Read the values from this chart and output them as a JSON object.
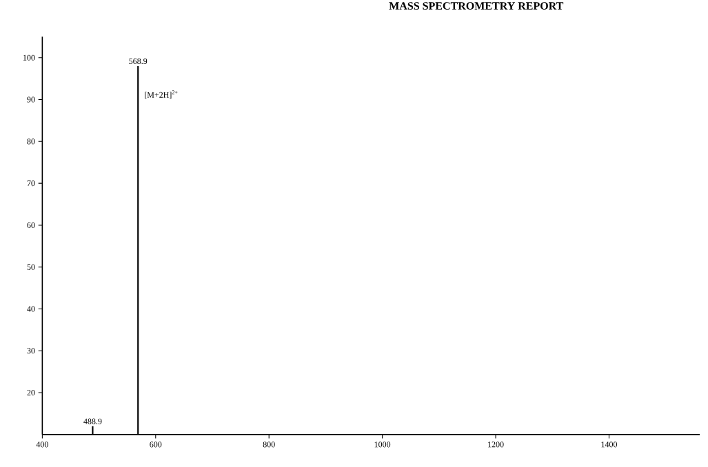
{
  "chart_data": {
    "type": "bar",
    "title": "MASS SPECTROMETRY REPORT",
    "x": [
      488.9,
      568.9
    ],
    "series": [
      {
        "color": "#000000",
        "values": [
          12,
          98
        ]
      }
    ],
    "xlim": [
      400,
      1560
    ],
    "ylim": [
      10,
      105
    ],
    "xticks": [
      400,
      600,
      800,
      1000,
      1200,
      1400
    ],
    "yticks": [
      20,
      30,
      40,
      50,
      60,
      70,
      80,
      90,
      100
    ],
    "grid": false,
    "annotations": [
      {
        "text": "488.9",
        "x": 488.9,
        "y": 12
      },
      {
        "text": "568.9",
        "x": 568.9,
        "y": 98
      },
      "[M+2H]$^{2+}$"
    ]
  }
}
